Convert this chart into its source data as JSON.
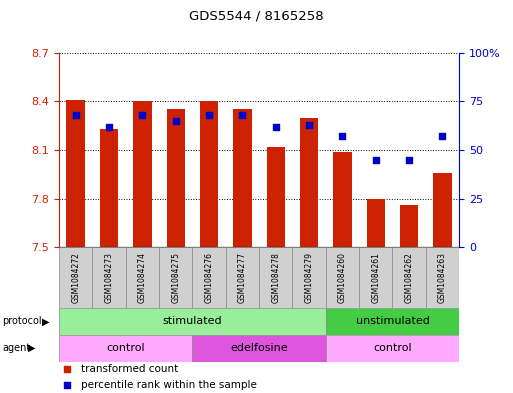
{
  "title": "GDS5544 / 8165258",
  "samples": [
    "GSM1084272",
    "GSM1084273",
    "GSM1084274",
    "GSM1084275",
    "GSM1084276",
    "GSM1084277",
    "GSM1084278",
    "GSM1084279",
    "GSM1084260",
    "GSM1084261",
    "GSM1084262",
    "GSM1084263"
  ],
  "transformed_count": [
    8.41,
    8.23,
    8.4,
    8.35,
    8.4,
    8.35,
    8.12,
    8.3,
    8.09,
    7.8,
    7.76,
    7.96
  ],
  "percentile_rank": [
    68,
    62,
    68,
    65,
    68,
    68,
    62,
    63,
    57,
    45,
    45,
    57
  ],
  "ylim_left": [
    7.5,
    8.7
  ],
  "ylim_right": [
    0,
    100
  ],
  "yticks_left": [
    7.5,
    7.8,
    8.1,
    8.4,
    8.7
  ],
  "yticks_right": [
    0,
    25,
    50,
    75,
    100
  ],
  "ytick_labels_right": [
    "0",
    "25",
    "50",
    "75",
    "100%"
  ],
  "bar_color": "#cc2200",
  "dot_color": "#0000cc",
  "bar_bottom": 7.5,
  "protocol_groups": [
    {
      "label": "stimulated",
      "start": 0,
      "end": 8,
      "color": "#99ee99"
    },
    {
      "label": "unstimulated",
      "start": 8,
      "end": 12,
      "color": "#44cc44"
    }
  ],
  "agent_groups": [
    {
      "label": "control",
      "start": 0,
      "end": 4,
      "color": "#ffaaff"
    },
    {
      "label": "edelfosine",
      "start": 4,
      "end": 8,
      "color": "#dd55dd"
    },
    {
      "label": "control",
      "start": 8,
      "end": 12,
      "color": "#ffaaff"
    }
  ],
  "legend_items": [
    {
      "label": "transformed count",
      "color": "#cc2200"
    },
    {
      "label": "percentile rank within the sample",
      "color": "#0000cc"
    }
  ],
  "tick_color_left": "#cc2200",
  "tick_color_right": "#0000cc",
  "sample_box_color": "#d0d0d0"
}
